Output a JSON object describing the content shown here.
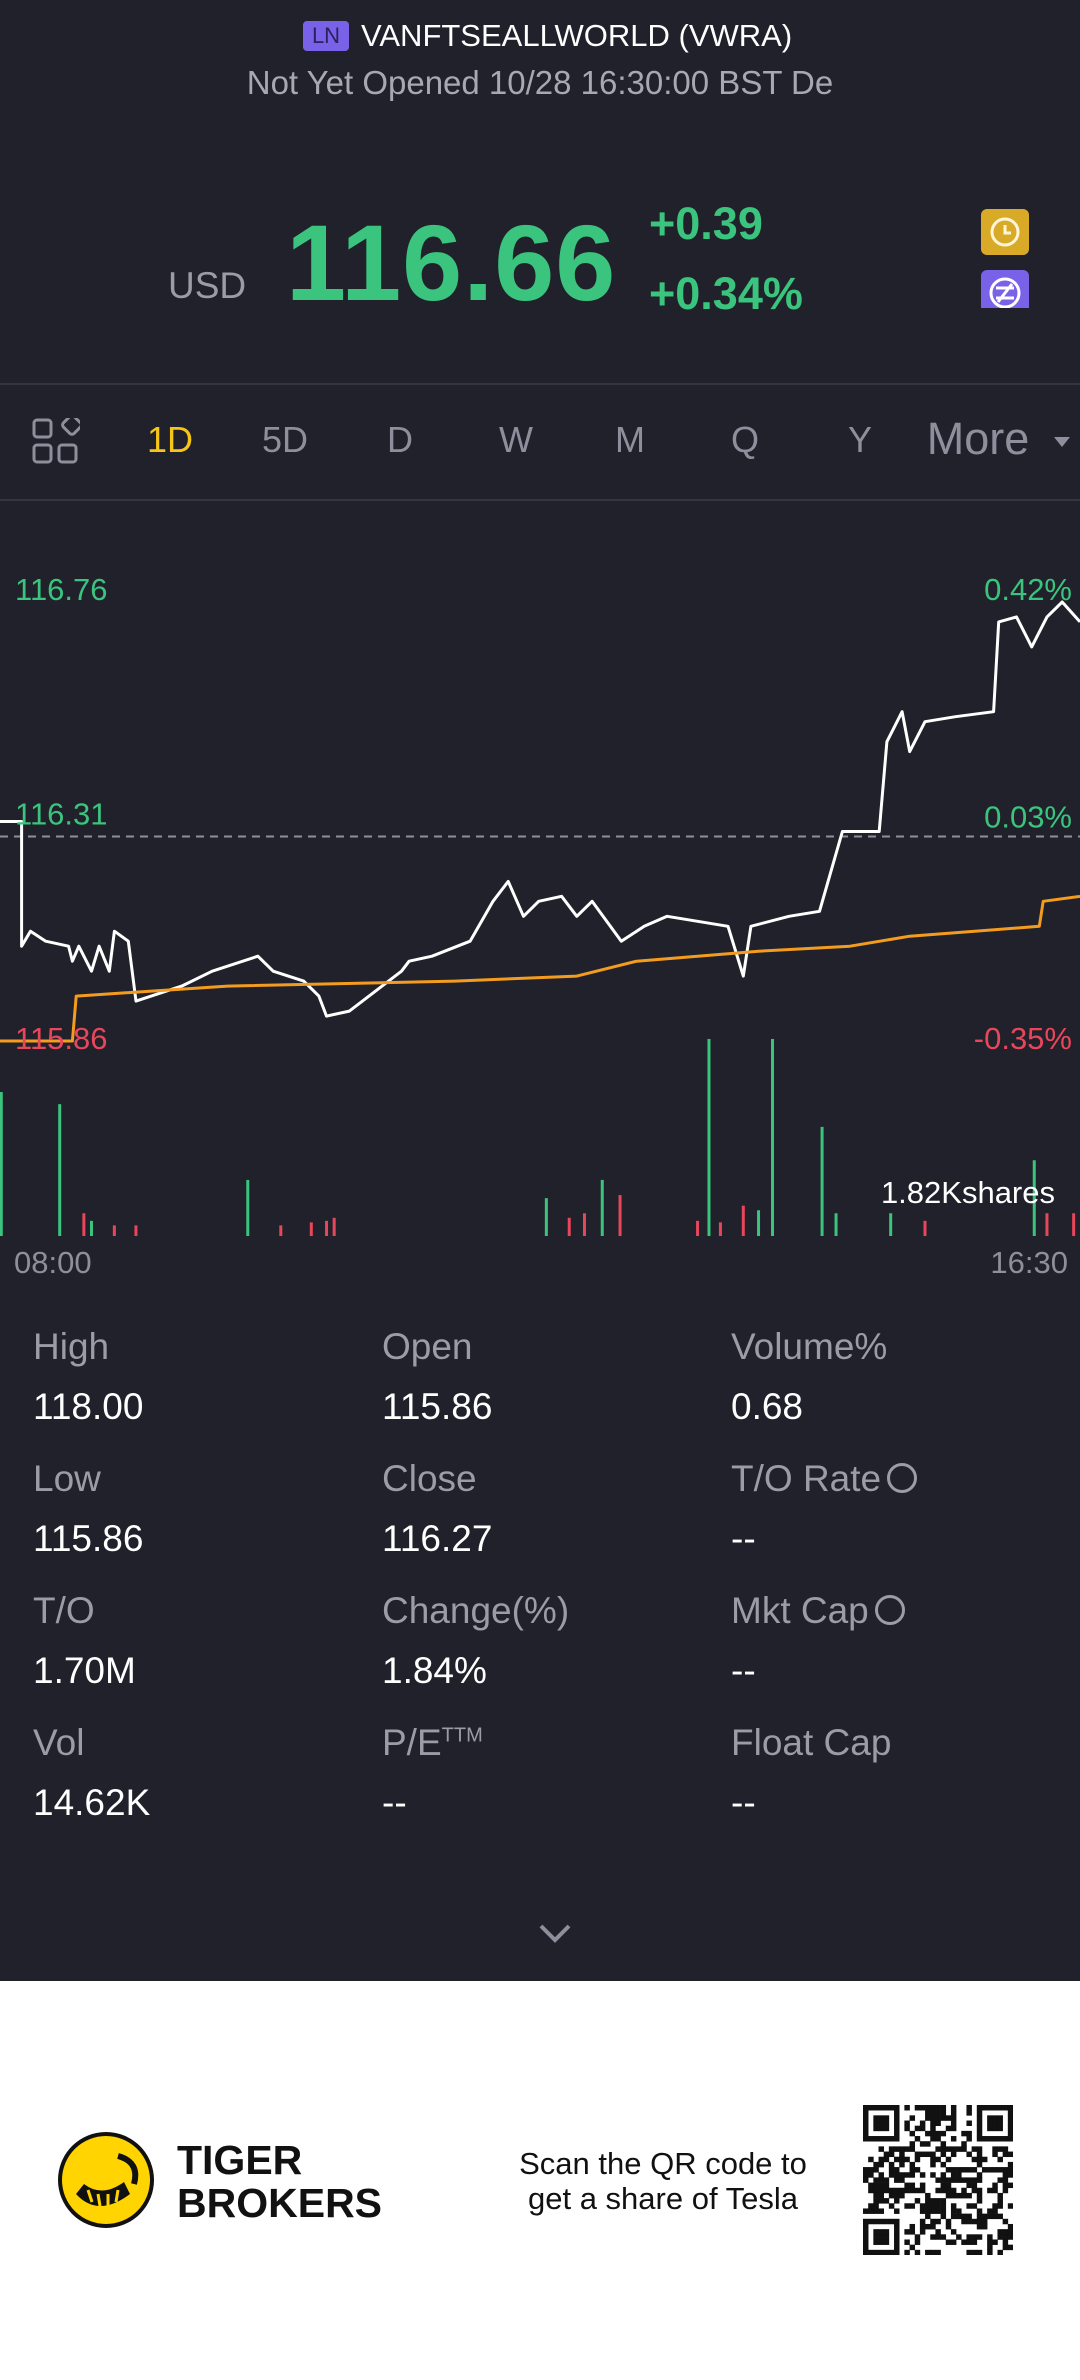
{
  "header": {
    "badge": "LN",
    "name": "VANFTSEALLWORLD (VWRA)",
    "status": "Not Yet Opened 10/28 16:30:00 BST De"
  },
  "quote": {
    "currency": "USD",
    "price": "116.66",
    "change": "+0.39",
    "change_pct": "+0.34%"
  },
  "tabs": [
    "1D",
    "5D",
    "D",
    "W",
    "M",
    "Q",
    "Y",
    "More"
  ],
  "active_tab": "1D",
  "chart_data": {
    "type": "line",
    "xlim": [
      8,
      16.5
    ],
    "xticks": [
      {
        "value": 8,
        "label": "08:00"
      },
      {
        "value": 16.5,
        "label": "16:30"
      }
    ],
    "ylim": [
      115.86,
      116.76
    ],
    "yticks": [
      115.86,
      116.31,
      116.76
    ],
    "y2lim": [
      -0.35,
      0.42
    ],
    "y2ticks": [
      {
        "value": -0.35,
        "label": "-0.35%"
      },
      {
        "value": 0.03,
        "label": "0.03%"
      },
      {
        "value": 0.42,
        "label": "0.42%"
      }
    ],
    "reference_line": 116.27,
    "up_color": "#3ac47d",
    "down_color": "#e8465a",
    "series": [
      {
        "color": "#ffffff",
        "x": [
          8.0,
          8.17,
          8.17,
          8.24,
          8.36,
          8.54,
          8.57,
          8.62,
          8.72,
          8.78,
          8.86,
          8.9,
          9.01,
          9.07,
          9.19,
          9.43,
          9.67,
          10.03,
          10.15,
          10.39,
          10.51,
          10.57,
          10.75,
          11.16,
          11.22,
          11.4,
          11.7,
          11.88,
          12.0,
          12.12,
          12.24,
          12.42,
          12.54,
          12.66,
          12.89,
          13.07,
          13.25,
          13.49,
          13.73,
          13.85,
          13.91,
          14.21,
          14.45,
          14.63,
          14.92,
          14.98,
          15.1,
          15.16,
          15.28,
          15.52,
          15.82,
          15.86,
          16.0,
          16.12,
          16.24,
          16.36,
          16.5
        ],
        "values": [
          116.3,
          116.3,
          116.05,
          116.08,
          116.06,
          116.05,
          116.02,
          116.05,
          116.0,
          116.05,
          116.0,
          116.08,
          116.06,
          115.94,
          115.95,
          115.97,
          116.0,
          116.03,
          116.0,
          115.98,
          115.95,
          115.91,
          115.92,
          116.0,
          116.02,
          116.03,
          116.06,
          116.14,
          116.18,
          116.11,
          116.14,
          116.15,
          116.11,
          116.14,
          116.06,
          116.09,
          116.11,
          116.1,
          116.09,
          115.99,
          116.09,
          116.11,
          116.12,
          116.28,
          116.28,
          116.46,
          116.52,
          116.44,
          116.5,
          116.51,
          116.52,
          116.7,
          116.71,
          116.65,
          116.71,
          116.74,
          116.7
        ]
      },
      {
        "color": "#f39c1f",
        "x": [
          8.0,
          8.57,
          8.6,
          9.79,
          11.58,
          12.54,
          13.01,
          13.97,
          14.69,
          15.16,
          16.18,
          16.21,
          16.5
        ],
        "values": [
          115.86,
          115.86,
          115.95,
          115.97,
          115.98,
          115.99,
          116.02,
          116.04,
          116.05,
          116.07,
          116.09,
          116.14,
          116.15
        ]
      }
    ],
    "volume": {
      "ylim": [
        0,
        1820
      ],
      "yticks": [
        {
          "value": 1820,
          "label": "1.82Kshares"
        }
      ],
      "x": [
        8.01,
        8.47,
        8.66,
        8.72,
        8.9,
        9.07,
        9.95,
        10.21,
        10.45,
        10.57,
        10.63,
        12.3,
        12.48,
        12.6,
        12.74,
        12.88,
        13.49,
        13.58,
        13.67,
        13.85,
        13.97,
        14.08,
        14.47,
        14.58,
        15.01,
        15.28,
        16.14,
        16.24,
        16.45
      ],
      "values": [
        1330,
        1218,
        210,
        140,
        98,
        98,
        518,
        98,
        126,
        140,
        168,
        350,
        168,
        210,
        518,
        378,
        140,
        1820,
        126,
        280,
        238,
        1820,
        1008,
        210,
        210,
        140,
        700,
        210,
        210
      ],
      "colors": [
        "#3ac47d",
        "#3ac47d",
        "#e8465a",
        "#3ac47d",
        "#e8465a",
        "#e8465a",
        "#3ac47d",
        "#e8465a",
        "#e8465a",
        "#e8465a",
        "#e8465a",
        "#3ac47d",
        "#e8465a",
        "#e8465a",
        "#3ac47d",
        "#e8465a",
        "#e8465a",
        "#3ac47d",
        "#e8465a",
        "#e8465a",
        "#3ac47d",
        "#3ac47d",
        "#3ac47d",
        "#3ac47d",
        "#3ac47d",
        "#e8465a",
        "#3ac47d",
        "#e8465a",
        "#e8465a"
      ]
    }
  },
  "stats": [
    {
      "label": "High",
      "value": "118.00"
    },
    {
      "label": "Open",
      "value": "115.86"
    },
    {
      "label": "Volume%",
      "value": "0.68"
    },
    {
      "label": "Low",
      "value": "115.86"
    },
    {
      "label": "Close",
      "value": "116.27"
    },
    {
      "label": "T/O Rate",
      "value": "--",
      "info": true
    },
    {
      "label": "T/O",
      "value": "1.70M"
    },
    {
      "label": "Change(%)",
      "value": "1.84%"
    },
    {
      "label": "Mkt Cap",
      "value": "--",
      "info": true
    },
    {
      "label": "Vol",
      "value": "14.62K"
    },
    {
      "label": "P/E",
      "sup": "TTM",
      "value": "--"
    },
    {
      "label": "Float Cap",
      "value": "--"
    }
  ],
  "footer": {
    "brand": [
      "TIGER",
      "BROKERS"
    ],
    "promo": [
      "Scan the QR code to",
      "get a share of Tesla"
    ]
  }
}
